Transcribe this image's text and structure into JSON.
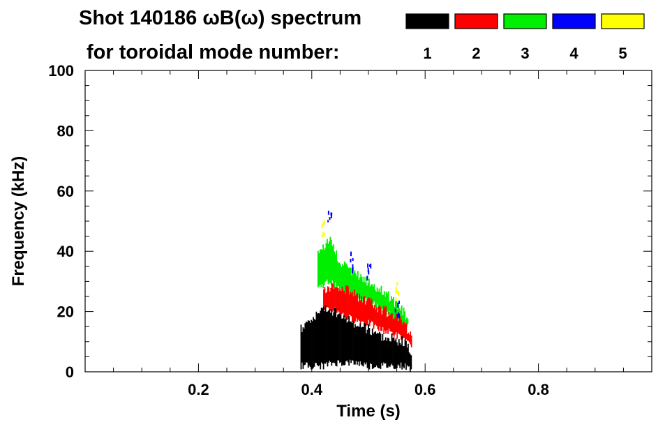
{
  "chart_data": {
    "type": "spectrogram",
    "title_line1": "Shot 140186 ωB(ω) spectrum",
    "title_line2": "for toroidal mode number:",
    "xlabel": "Time (s)",
    "ylabel": "Frequency (kHz)",
    "xlim": [
      0.0,
      1.0
    ],
    "ylim": [
      0,
      100
    ],
    "x_ticks": [
      0.2,
      0.4,
      0.6,
      0.8
    ],
    "x_tick_labels": [
      "0.2",
      "0.4",
      "0.6",
      "0.8"
    ],
    "y_ticks": [
      0,
      20,
      40,
      60,
      80,
      100
    ],
    "y_tick_labels": [
      "0",
      "20",
      "40",
      "60",
      "80",
      "100"
    ],
    "x_minor_step": 0.05,
    "y_minor_step": 5,
    "grid": false,
    "legend_position": "top-right",
    "legend": [
      {
        "label": "1",
        "color": "#000000"
      },
      {
        "label": "2",
        "color": "#ff0000"
      },
      {
        "label": "3",
        "color": "#00ee00"
      },
      {
        "label": "4",
        "color": "#0000ff"
      },
      {
        "label": "5",
        "color": "#ffff00"
      }
    ],
    "series": [
      {
        "name": "1",
        "color": "#000000",
        "time": [
          0.38,
          0.4,
          0.42,
          0.44,
          0.46,
          0.48,
          0.5,
          0.52,
          0.54,
          0.56,
          0.575
        ],
        "freq_low": [
          2,
          2,
          2,
          3,
          3,
          3,
          2,
          2,
          2,
          2,
          1
        ],
        "freq_high": [
          14,
          18,
          21,
          20,
          17,
          16,
          14,
          12,
          11,
          10,
          6
        ]
      },
      {
        "name": "2",
        "color": "#ff0000",
        "time": [
          0.42,
          0.44,
          0.46,
          0.48,
          0.5,
          0.52,
          0.54,
          0.56,
          0.575
        ],
        "freq_low": [
          20,
          21,
          18,
          17,
          16,
          14,
          13,
          11,
          8
        ],
        "freq_high": [
          27,
          29,
          27,
          25,
          23,
          21,
          19,
          16,
          12
        ]
      },
      {
        "name": "3",
        "color": "#00ee00",
        "time": [
          0.41,
          0.43,
          0.45,
          0.47,
          0.49,
          0.51,
          0.53,
          0.55,
          0.57
        ],
        "freq_low": [
          28,
          30,
          27,
          25,
          24,
          22,
          20,
          17,
          15
        ],
        "freq_high": [
          40,
          44,
          36,
          33,
          31,
          28,
          26,
          22,
          18
        ]
      },
      {
        "name": "4",
        "color": "#0000ff",
        "time": [
          0.43,
          0.47,
          0.5,
          0.55
        ],
        "freq": [
          52,
          37,
          34,
          21
        ]
      },
      {
        "name": "5",
        "color": "#ffff00",
        "time": [
          0.42,
          0.55
        ],
        "freq": [
          48,
          27
        ]
      }
    ]
  }
}
